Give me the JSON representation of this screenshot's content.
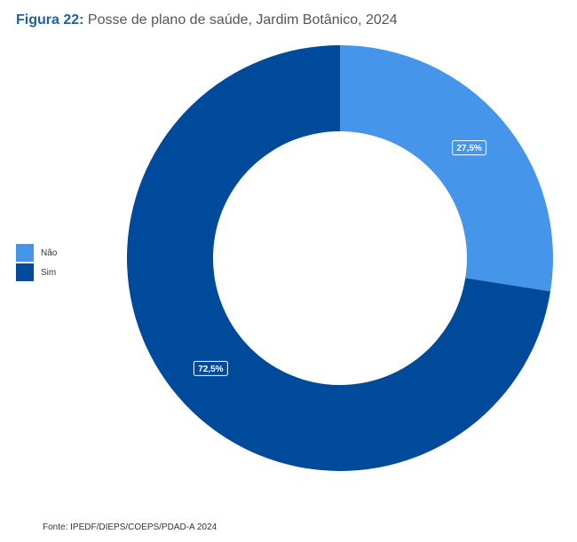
{
  "figure": {
    "title_prefix": "Figura 22:",
    "title_text": "Posse de plano de saúde, Jardim Botânico, 2024",
    "source": "Fonte: IPEDF/DIEPS/COEPS/PDAD-A 2024"
  },
  "chart_data": {
    "type": "pie",
    "variant": "donut",
    "title": "Posse de plano de saúde, Jardim Botânico, 2024",
    "legend_position": "left",
    "slices": [
      {
        "label": "Não",
        "value": 27.5,
        "display": "27,5%",
        "color": "#4595ea"
      },
      {
        "label": "Sim",
        "value": 72.5,
        "display": "72,5%",
        "color": "#004a9c"
      }
    ]
  }
}
